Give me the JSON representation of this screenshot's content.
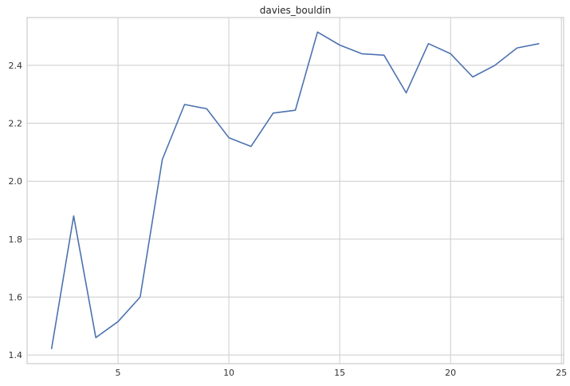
{
  "chart_data": {
    "type": "line",
    "title": "davies_bouldin",
    "xlabel": "",
    "ylabel": "",
    "xlim": [
      0.9,
      25.1
    ],
    "ylim": [
      1.37,
      2.565
    ],
    "xticks": [
      5,
      10,
      15,
      20,
      25
    ],
    "yticks": [
      1.4,
      1.6,
      1.8,
      2.0,
      2.2,
      2.4
    ],
    "ytick_labels": [
      "1.4",
      "1.6",
      "1.8",
      "2.0",
      "2.2",
      "2.4"
    ],
    "grid": true,
    "legend": "none",
    "series": [
      {
        "color": "#4c72b0",
        "x": [
          2,
          3,
          4,
          5,
          6,
          7,
          8,
          9,
          10,
          11,
          12,
          13,
          14,
          15,
          16,
          17,
          18,
          19,
          20,
          21,
          22,
          23,
          24
        ],
        "y": [
          1.42,
          1.88,
          1.46,
          1.515,
          1.6,
          2.075,
          2.265,
          2.25,
          2.15,
          2.12,
          2.235,
          2.245,
          2.515,
          2.47,
          2.44,
          2.435,
          2.305,
          2.475,
          2.44,
          2.36,
          2.4,
          2.46,
          2.475
        ]
      }
    ]
  }
}
